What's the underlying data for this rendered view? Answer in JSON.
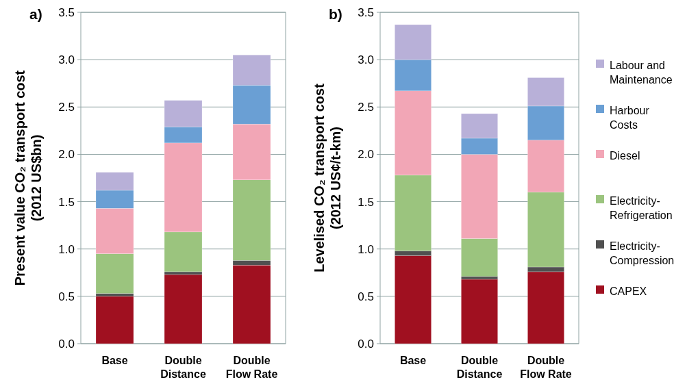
{
  "chart_data": [
    {
      "type": "bar",
      "title": "a)",
      "ylabel": "Present value CO₂ transport cost (2012 US$bn)",
      "stacked": true,
      "categories": [
        "Base",
        "Double Distance",
        "Double Flow Rate"
      ],
      "ylim": [
        0,
        3.5
      ],
      "yticks": [
        {
          "value": 0,
          "label": "0.0"
        },
        0.5,
        {
          "value": 1,
          "label": "1.0"
        },
        1.5,
        {
          "value": 2,
          "label": "2.0"
        },
        2.5,
        {
          "value": 3,
          "label": "3.0"
        },
        3.5
      ],
      "grid": "y",
      "legend": false,
      "series": [
        {
          "color": "#a01020",
          "values": [
            0.5,
            0.73,
            0.83
          ]
        },
        {
          "color": "#505050",
          "values": [
            0.03,
            0.03,
            0.05
          ]
        },
        {
          "color": "#9bc47e",
          "values": [
            0.42,
            0.42,
            0.85
          ]
        },
        {
          "color": "#f2a6b6",
          "values": [
            0.48,
            0.94,
            0.59
          ]
        },
        {
          "color": "#6a9fd4",
          "values": [
            0.19,
            0.17,
            0.41
          ]
        },
        {
          "color": "#b8b0d8",
          "values": [
            0.19,
            0.28,
            0.32
          ]
        }
      ]
    },
    {
      "type": "bar",
      "title": "b)",
      "ylabel": "Levelised CO₂ transport cost (2012 US¢/t-km)",
      "stacked": true,
      "categories": [
        "Base",
        "Double Distance",
        "Double Flow Rate"
      ],
      "ylim": [
        0,
        3.5
      ],
      "yticks": [
        {
          "value": 0,
          "label": "0.0"
        },
        0.5,
        {
          "value": 1,
          "label": "1.0"
        },
        1.5,
        {
          "value": 2,
          "label": "2.0"
        },
        2.5,
        {
          "value": 3,
          "label": "3.0"
        },
        3.5
      ],
      "grid": "y",
      "legend": "right",
      "series": [
        {
          "name": "CAPEX",
          "color": "#a01020",
          "values": [
            0.93,
            0.68,
            0.76
          ]
        },
        {
          "name": "Electricity-Compression",
          "color": "#505050",
          "values": [
            0.05,
            0.03,
            0.05
          ]
        },
        {
          "name": "Electricity-Refrigeration",
          "color": "#9bc47e",
          "values": [
            0.8,
            0.4,
            0.79
          ]
        },
        {
          "name": "Diesel",
          "color": "#f2a6b6",
          "values": [
            0.89,
            0.89,
            0.55
          ]
        },
        {
          "name": "Harbour Costs",
          "color": "#6a9fd4",
          "values": [
            0.33,
            0.17,
            0.36
          ]
        },
        {
          "name": "Labour and Maintenance",
          "color": "#b8b0d8",
          "values": [
            0.37,
            0.26,
            0.3
          ]
        }
      ]
    }
  ]
}
